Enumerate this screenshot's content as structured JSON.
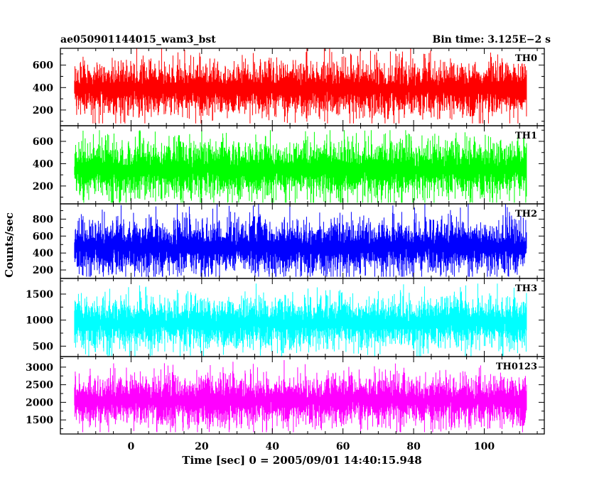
{
  "chart_data": {
    "type": "line",
    "title_left": "ae050901144015_wam3_bst",
    "title_right": "Bin time: 3.125E−2 s",
    "xlabel": "Time [sec] 0 = 2005/09/01 14:40:15.948",
    "ylabel": "Counts/sec",
    "xlim": [
      -20,
      117
    ],
    "x_data_range": [
      -16,
      112
    ],
    "x_ticks": [
      0,
      20,
      40,
      60,
      80,
      100
    ],
    "x_tick_labels": [
      "0",
      "20",
      "40",
      "60",
      "80",
      "100"
    ],
    "grid": false,
    "panels": [
      {
        "name": "TH0",
        "color": "#ff0000",
        "ylim": [
          60,
          750
        ],
        "y_ticks": [
          200,
          400,
          600
        ],
        "y_tick_labels": [
          "200",
          "400",
          "600"
        ],
        "mean": 390,
        "low": 160,
        "high": 620,
        "min": 80,
        "max": 750
      },
      {
        "name": "TH1",
        "color": "#00ff00",
        "ylim": [
          40,
          740
        ],
        "y_ticks": [
          200,
          400,
          600
        ],
        "y_tick_labels": [
          "200",
          "400",
          "600"
        ],
        "mean": 350,
        "low": 120,
        "high": 610,
        "min": 50,
        "max": 700
      },
      {
        "name": "TH2",
        "color": "#0000ff",
        "ylim": [
          100,
          980
        ],
        "y_ticks": [
          200,
          400,
          600,
          800
        ],
        "y_tick_labels": [
          "200",
          "400",
          "600",
          "800"
        ],
        "mean": 470,
        "low": 200,
        "high": 830,
        "min": 120,
        "max": 980
      },
      {
        "name": "TH3",
        "color": "#00ffff",
        "ylim": [
          300,
          1800
        ],
        "y_ticks": [
          500,
          1000,
          1500
        ],
        "y_tick_labels": [
          "500",
          "1000",
          "1500"
        ],
        "mean": 950,
        "low": 520,
        "high": 1450,
        "min": 300,
        "max": 1700
      },
      {
        "name": "TH0123",
        "color": "#ff00ff",
        "ylim": [
          1100,
          3300
        ],
        "y_ticks": [
          1500,
          2000,
          2500,
          3000
        ],
        "y_tick_labels": [
          "1500",
          "2000",
          "2500",
          "3000"
        ],
        "mean": 2050,
        "low": 1450,
        "high": 2800,
        "min": 1150,
        "max": 3200
      }
    ]
  }
}
